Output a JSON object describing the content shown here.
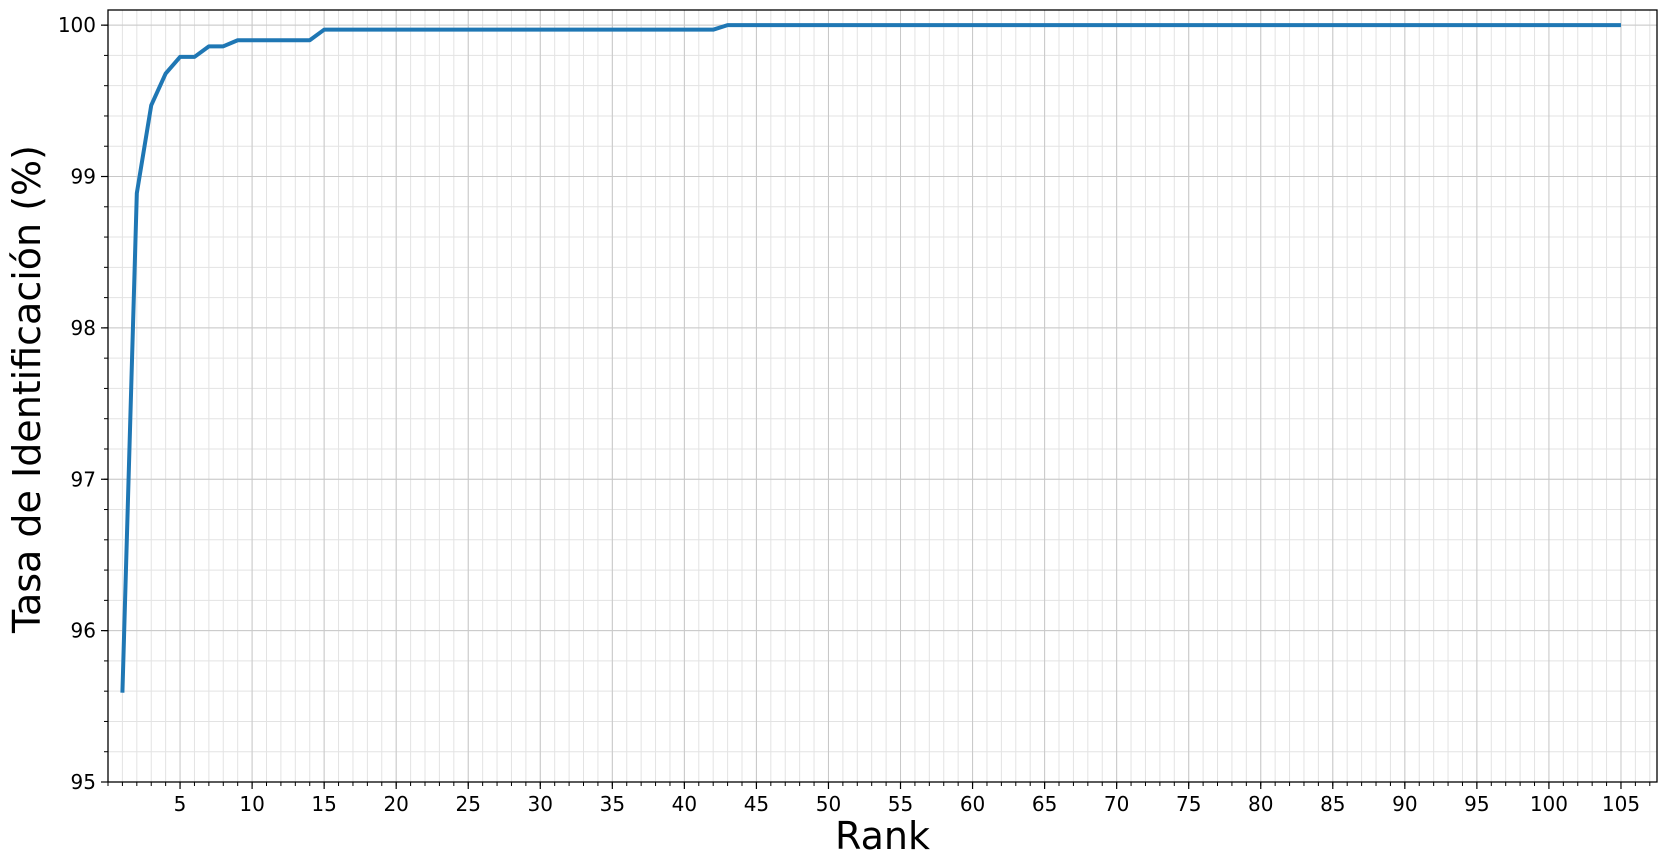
{
  "chart_data": {
    "type": "line",
    "title": "",
    "xlabel": "Rank",
    "ylabel": "Tasa de Identificación (%)",
    "xlim": [
      0,
      107.5
    ],
    "ylim": [
      95,
      100.1
    ],
    "x_ticks": [
      5,
      10,
      15,
      20,
      25,
      30,
      35,
      40,
      45,
      50,
      55,
      60,
      65,
      70,
      75,
      80,
      85,
      90,
      95,
      100,
      105
    ],
    "y_ticks": [
      95,
      96,
      97,
      98,
      99,
      100
    ],
    "x_minor_step": 1,
    "y_minor_step": 0.2,
    "grid": true,
    "line_color": "#1f77b4",
    "series": [
      {
        "x": [
          1,
          2,
          3,
          4,
          5,
          6,
          7,
          8,
          9,
          10,
          11,
          12,
          13,
          14,
          15,
          16,
          17,
          18,
          19,
          20,
          21,
          22,
          23,
          24,
          25,
          26,
          27,
          28,
          29,
          30,
          31,
          32,
          33,
          34,
          35,
          36,
          37,
          38,
          39,
          40,
          41,
          42,
          43,
          44,
          45,
          46,
          47,
          48,
          49,
          50,
          51,
          52,
          53,
          54,
          55,
          56,
          57,
          58,
          59,
          60,
          61,
          62,
          63,
          64,
          65,
          66,
          67,
          68,
          69,
          70,
          71,
          72,
          73,
          74,
          75,
          76,
          77,
          78,
          79,
          80,
          81,
          82,
          83,
          84,
          85,
          86,
          87,
          88,
          89,
          90,
          91,
          92,
          93,
          94,
          95,
          96,
          97,
          98,
          99,
          100,
          101,
          102,
          103,
          104,
          105
        ],
        "y": [
          95.59,
          98.89,
          99.47,
          99.68,
          99.79,
          99.79,
          99.86,
          99.86,
          99.9,
          99.9,
          99.9,
          99.9,
          99.9,
          99.9,
          99.97,
          99.97,
          99.97,
          99.97,
          99.97,
          99.97,
          99.97,
          99.97,
          99.97,
          99.97,
          99.97,
          99.97,
          99.97,
          99.97,
          99.97,
          99.97,
          99.97,
          99.97,
          99.97,
          99.97,
          99.97,
          99.97,
          99.97,
          99.97,
          99.97,
          99.97,
          99.97,
          99.97,
          100,
          100,
          100,
          100,
          100,
          100,
          100,
          100,
          100,
          100,
          100,
          100,
          100,
          100,
          100,
          100,
          100,
          100,
          100,
          100,
          100,
          100,
          100,
          100,
          100,
          100,
          100,
          100,
          100,
          100,
          100,
          100,
          100,
          100,
          100,
          100,
          100,
          100,
          100,
          100,
          100,
          100,
          100,
          100,
          100,
          100,
          100,
          100,
          100,
          100,
          100,
          100,
          100,
          100,
          100,
          100,
          100,
          100,
          100,
          100,
          100,
          100,
          100
        ]
      }
    ]
  }
}
